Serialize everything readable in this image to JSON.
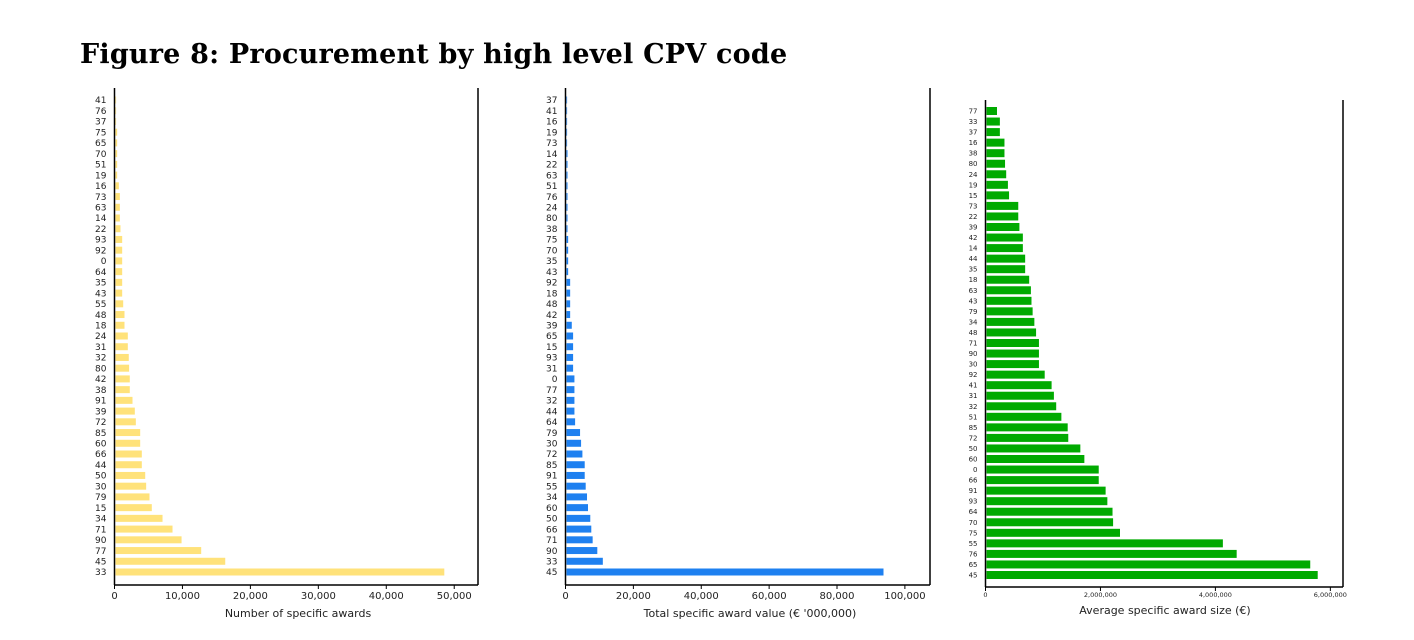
{
  "title": "Figure 8: Procurement by high level CPV code",
  "chart_data": [
    {
      "type": "bar",
      "orientation": "horizontal",
      "xlabel": "Number of specific awards",
      "ylabel": "",
      "xlim": [
        0,
        53500
      ],
      "xticks": [
        0,
        10000,
        20000,
        30000,
        40000,
        50000
      ],
      "xtick_labels": [
        "0",
        "10,000",
        "20,000",
        "30,000",
        "40,000",
        "50,000"
      ],
      "color": "#FFE27A",
      "grid": false,
      "categories": [
        "41",
        "76",
        "37",
        "75",
        "65",
        "70",
        "51",
        "19",
        "16",
        "73",
        "63",
        "14",
        "22",
        "93",
        "92",
        "0",
        "64",
        "35",
        "43",
        "55",
        "48",
        "18",
        "24",
        "31",
        "32",
        "80",
        "42",
        "38",
        "91",
        "39",
        "72",
        "85",
        "60",
        "66",
        "44",
        "50",
        "30",
        "79",
        "15",
        "34",
        "71",
        "90",
        "77",
        "45",
        "33"
      ],
      "values": [
        100,
        150,
        150,
        390,
        390,
        390,
        390,
        390,
        640,
        790,
        790,
        790,
        880,
        1130,
        1130,
        1130,
        1130,
        1130,
        1130,
        1280,
        1470,
        1470,
        1960,
        1960,
        2100,
        2150,
        2250,
        2250,
        2650,
        2990,
        3140,
        3780,
        3780,
        4020,
        4020,
        4520,
        4660,
        5150,
        5490,
        7070,
        8540,
        9870,
        12760,
        16300,
        48540
      ]
    },
    {
      "type": "bar",
      "orientation": "horizontal",
      "xlabel": "Total specific award value (€ '000,000)",
      "ylabel": "",
      "xlim": [
        0,
        107400
      ],
      "xticks": [
        0,
        20000,
        40000,
        60000,
        80000,
        100000
      ],
      "xtick_labels": [
        "0",
        "20,000",
        "40,000",
        "60,000",
        "80,000",
        "100,000"
      ],
      "color": "#1E80F0",
      "grid": false,
      "categories": [
        "37",
        "41",
        "16",
        "19",
        "73",
        "14",
        "22",
        "63",
        "51",
        "76",
        "24",
        "80",
        "38",
        "75",
        "70",
        "35",
        "43",
        "92",
        "18",
        "48",
        "42",
        "39",
        "65",
        "15",
        "93",
        "31",
        "0",
        "77",
        "32",
        "44",
        "64",
        "79",
        "30",
        "72",
        "85",
        "91",
        "55",
        "34",
        "60",
        "50",
        "66",
        "71",
        "90",
        "33",
        "45"
      ],
      "values": [
        30,
        40,
        50,
        50,
        60,
        590,
        590,
        590,
        590,
        590,
        590,
        590,
        590,
        780,
        780,
        780,
        780,
        1370,
        1370,
        1370,
        1370,
        1850,
        2240,
        2240,
        2240,
        2240,
        2630,
        2630,
        2630,
        2630,
        2830,
        4290,
        4590,
        4980,
        5660,
        5660,
        5950,
        6340,
        6630,
        7300,
        7600,
        8000,
        9370,
        11000,
        93700
      ]
    },
    {
      "type": "bar",
      "orientation": "horizontal",
      "xlabel": "Average specific award size (€)",
      "ylabel": "",
      "xlim": [
        0,
        6220000
      ],
      "xticks": [
        0,
        2000000,
        4000000,
        6000000
      ],
      "xtick_labels": [
        "0",
        "2,000,000",
        "4,000,000",
        "6,000,000"
      ],
      "color": "#00AA00",
      "grid": false,
      "categories": [
        "77",
        "33",
        "37",
        "16",
        "38",
        "80",
        "24",
        "19",
        "15",
        "73",
        "22",
        "39",
        "42",
        "14",
        "44",
        "35",
        "18",
        "63",
        "43",
        "79",
        "34",
        "48",
        "71",
        "90",
        "30",
        "92",
        "41",
        "31",
        "32",
        "51",
        "85",
        "72",
        "50",
        "60",
        "0",
        "66",
        "91",
        "93",
        "64",
        "70",
        "75",
        "55",
        "76",
        "65",
        "45"
      ],
      "values": [
        200000,
        250000,
        250000,
        330000,
        330000,
        340000,
        360000,
        390000,
        410000,
        570000,
        570000,
        590000,
        650000,
        650000,
        690000,
        690000,
        760000,
        790000,
        800000,
        820000,
        850000,
        880000,
        930000,
        930000,
        930000,
        1030000,
        1150000,
        1190000,
        1230000,
        1320000,
        1430000,
        1440000,
        1650000,
        1720000,
        1970000,
        1970000,
        2090000,
        2120000,
        2210000,
        2220000,
        2340000,
        4130000,
        4370000,
        5650000,
        5780000
      ]
    }
  ]
}
